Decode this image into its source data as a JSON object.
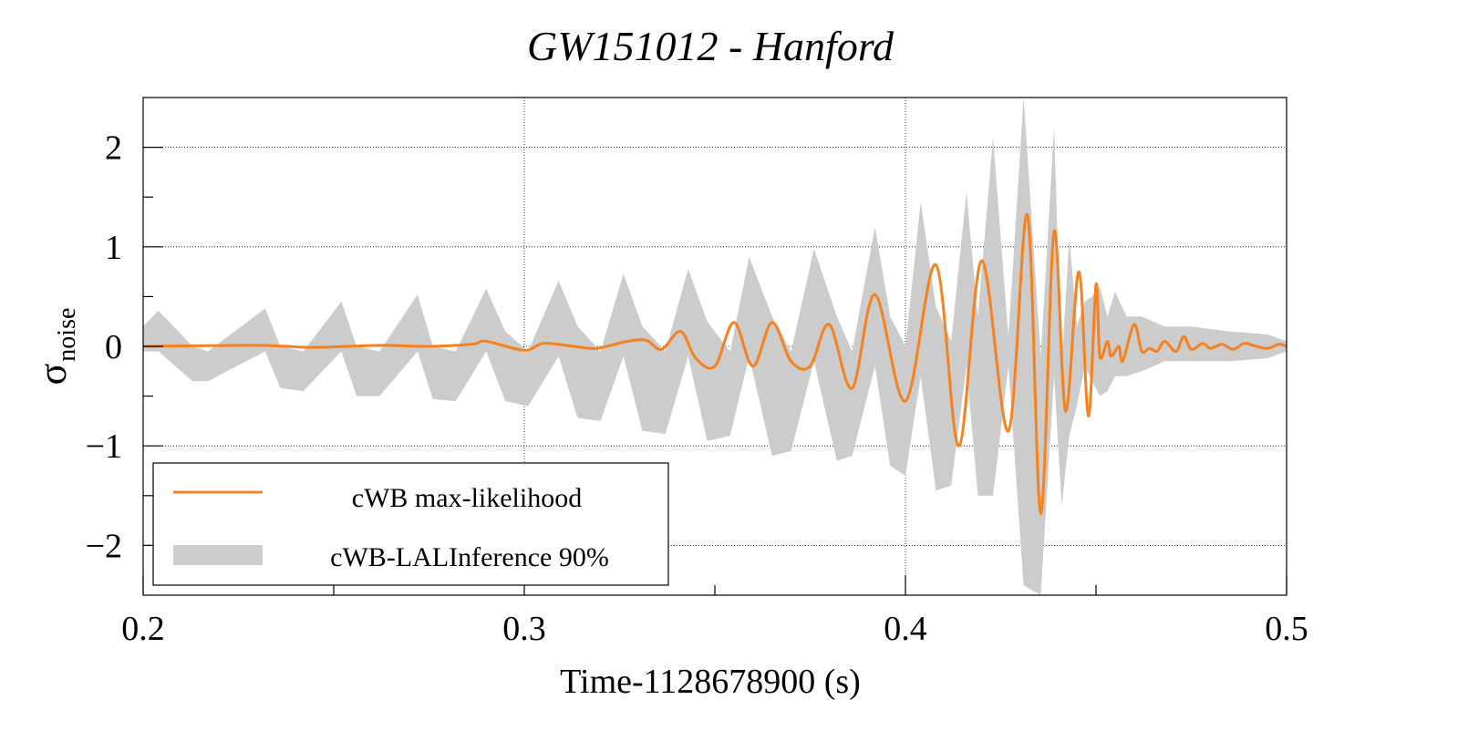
{
  "chart_data": {
    "type": "line",
    "title": "GW151012 - Hanford",
    "xlabel": "Time-1128678900 (s)",
    "ylabel_main": "σ",
    "ylabel_sub": "noise",
    "xlim": [
      0.2,
      0.5
    ],
    "ylim": [
      -2.5,
      2.5
    ],
    "xticks": [
      0.2,
      0.3,
      0.4,
      0.5
    ],
    "xtick_labels": [
      "0.2",
      "0.3",
      "0.4",
      "0.5"
    ],
    "xminor": [
      0.25,
      0.35,
      0.45
    ],
    "yticks": [
      -2,
      -1,
      0,
      1,
      2
    ],
    "ytick_labels": [
      "−2",
      "−1",
      "0",
      "1",
      "2"
    ],
    "yminor": [
      -1.5,
      -0.5,
      0.5,
      1.5
    ],
    "grid": true,
    "legend_position": "bottom-left",
    "colors": {
      "line": "#f5821f",
      "band": "#cccccc"
    },
    "series": [
      {
        "name": "cWB max-likelihood",
        "kind": "line",
        "color": "#f5821f",
        "x": [
          0.2,
          0.23,
          0.244,
          0.262,
          0.274,
          0.286,
          0.29,
          0.3,
          0.305,
          0.313,
          0.319,
          0.327,
          0.332,
          0.336,
          0.341,
          0.345,
          0.35,
          0.355,
          0.36,
          0.365,
          0.37,
          0.375,
          0.38,
          0.386,
          0.392,
          0.4,
          0.408,
          0.414,
          0.42,
          0.427,
          0.432,
          0.4355,
          0.439,
          0.442,
          0.4455,
          0.448,
          0.45,
          0.451,
          0.453,
          0.454,
          0.456,
          0.457,
          0.46,
          0.462,
          0.464,
          0.466,
          0.468,
          0.471,
          0.473,
          0.475,
          0.478,
          0.48,
          0.483,
          0.486,
          0.489,
          0.492,
          0.495,
          0.498,
          0.5
        ],
        "y": [
          0.0,
          0.01,
          -0.01,
          0.01,
          0.0,
          0.02,
          0.05,
          -0.04,
          0.03,
          0.0,
          -0.02,
          0.05,
          0.06,
          -0.03,
          0.15,
          -0.12,
          -0.2,
          0.24,
          -0.2,
          0.24,
          -0.15,
          -0.2,
          0.22,
          -0.42,
          0.52,
          -0.55,
          0.82,
          -1.0,
          0.86,
          -0.85,
          1.32,
          -1.68,
          1.15,
          -0.65,
          0.75,
          -0.7,
          0.62,
          -0.1,
          0.05,
          -0.1,
          0.0,
          -0.15,
          0.22,
          -0.05,
          -0.02,
          -0.05,
          0.05,
          -0.05,
          0.1,
          -0.03,
          0.03,
          -0.02,
          0.02,
          -0.03,
          0.03,
          0.0,
          -0.02,
          0.02,
          0.0
        ]
      },
      {
        "name": "cWB-LALInference 90%",
        "kind": "band",
        "color": "#cccccc",
        "x": [
          0.2,
          0.204,
          0.213,
          0.217,
          0.232,
          0.236,
          0.242,
          0.252,
          0.256,
          0.262,
          0.272,
          0.276,
          0.282,
          0.29,
          0.295,
          0.301,
          0.309,
          0.314,
          0.32,
          0.326,
          0.331,
          0.337,
          0.343,
          0.348,
          0.354,
          0.359,
          0.365,
          0.37,
          0.376,
          0.382,
          0.386,
          0.392,
          0.396,
          0.4,
          0.404,
          0.408,
          0.412,
          0.416,
          0.419,
          0.423,
          0.427,
          0.431,
          0.4355,
          0.439,
          0.441,
          0.443,
          0.445,
          0.447,
          0.449,
          0.451,
          0.453,
          0.455,
          0.458,
          0.462,
          0.468,
          0.475,
          0.485,
          0.495,
          0.5
        ],
        "upper": [
          0.2,
          0.36,
          0.0,
          -0.05,
          0.38,
          0.0,
          -0.05,
          0.45,
          0.0,
          -0.05,
          0.52,
          0.0,
          -0.05,
          0.58,
          0.15,
          -0.05,
          0.66,
          0.2,
          -0.05,
          0.73,
          0.2,
          -0.05,
          0.78,
          0.25,
          -0.05,
          0.9,
          0.3,
          -0.05,
          0.98,
          0.3,
          -0.05,
          1.2,
          0.3,
          0.0,
          1.45,
          0.4,
          0.05,
          1.55,
          0.3,
          2.1,
          0.1,
          2.5,
          -0.1,
          2.2,
          -0.2,
          1.1,
          0.2,
          0.45,
          0.5,
          0.6,
          0.3,
          0.55,
          0.3,
          0.3,
          0.2,
          0.2,
          0.15,
          0.12,
          0.05
        ],
        "lower": [
          -0.05,
          -0.05,
          -0.35,
          -0.35,
          -0.05,
          -0.42,
          -0.45,
          -0.05,
          -0.5,
          -0.5,
          -0.05,
          -0.53,
          -0.55,
          -0.05,
          -0.55,
          -0.6,
          -0.1,
          -0.72,
          -0.75,
          -0.1,
          -0.85,
          -0.88,
          -0.1,
          -0.95,
          -0.9,
          -0.1,
          -1.1,
          -1.05,
          -0.15,
          -1.15,
          -1.1,
          -0.2,
          -1.2,
          -1.3,
          -0.3,
          -1.45,
          -1.4,
          -0.2,
          -1.5,
          -1.5,
          -0.2,
          -2.4,
          -2.5,
          -0.3,
          -1.6,
          -0.9,
          -0.6,
          -0.2,
          -0.35,
          -0.5,
          -0.45,
          -0.3,
          -0.3,
          -0.25,
          -0.15,
          -0.15,
          -0.15,
          -0.12,
          -0.05
        ]
      }
    ]
  }
}
